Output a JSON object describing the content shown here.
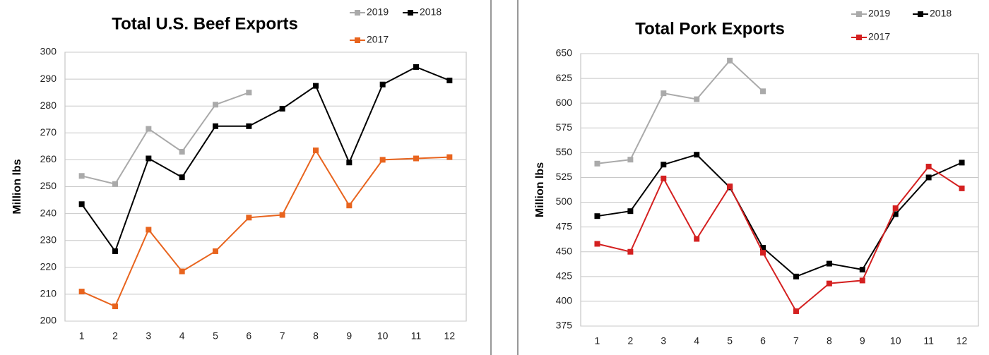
{
  "chart_data": [
    {
      "type": "line",
      "title": "Total U.S. Beef Exports",
      "y_label": "Million lbs",
      "categories": [
        "1",
        "2",
        "3",
        "4",
        "5",
        "6",
        "7",
        "8",
        "9",
        "10",
        "11",
        "12"
      ],
      "ylim": [
        200,
        300
      ],
      "yticks": [
        200,
        210,
        220,
        230,
        240,
        250,
        260,
        270,
        280,
        290,
        300
      ],
      "grid": true,
      "series": [
        {
          "name": "2019",
          "color": "#aaaaaa",
          "values": [
            254,
            251,
            271.5,
            263,
            280.5,
            285,
            null,
            null,
            null,
            null,
            null,
            null
          ]
        },
        {
          "name": "2018",
          "color": "#000000",
          "values": [
            243.5,
            226,
            260.5,
            253.5,
            272.5,
            272.5,
            279,
            287.5,
            259,
            288,
            294.5,
            289.5
          ]
        },
        {
          "name": "2017",
          "color": "#e8641e",
          "values": [
            211,
            205.5,
            234,
            218.5,
            226,
            238.5,
            239.5,
            263.5,
            243,
            260,
            260.5,
            261
          ]
        }
      ]
    },
    {
      "type": "line",
      "title": "Total Pork Exports",
      "y_label": "Million lbs",
      "categories": [
        "1",
        "2",
        "3",
        "4",
        "5",
        "6",
        "7",
        "8",
        "9",
        "10",
        "11",
        "12"
      ],
      "ylim": [
        375,
        650
      ],
      "yticks": [
        375,
        400,
        425,
        450,
        475,
        500,
        525,
        550,
        575,
        600,
        625,
        650
      ],
      "grid": true,
      "series": [
        {
          "name": "2019",
          "color": "#aaaaaa",
          "values": [
            539,
            543,
            610,
            604,
            643,
            612,
            null,
            null,
            null,
            null,
            null,
            null
          ]
        },
        {
          "name": "2018",
          "color": "#000000",
          "values": [
            486,
            491,
            538,
            548,
            515,
            454,
            425,
            438,
            432,
            488,
            525,
            540
          ]
        },
        {
          "name": "2017",
          "color": "#d42020",
          "values": [
            458,
            450,
            524,
            463,
            516,
            449,
            390,
            418,
            421,
            494,
            536,
            514
          ]
        }
      ]
    }
  ]
}
